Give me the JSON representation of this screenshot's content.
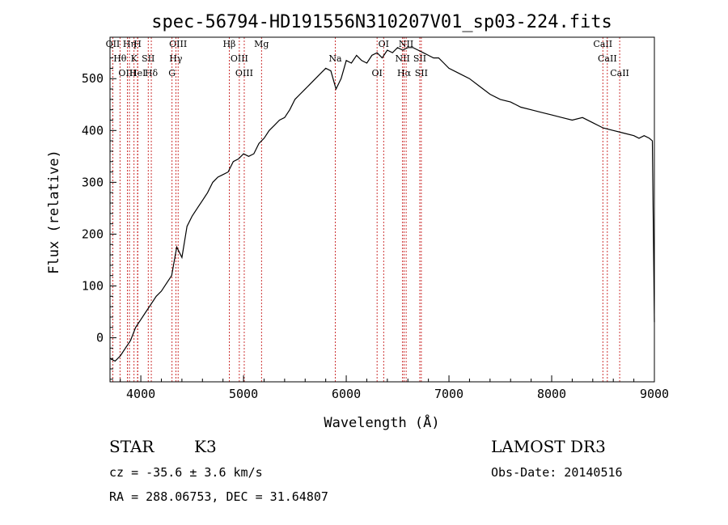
{
  "chart_data": {
    "type": "line",
    "title": "spec-56794-HD191556N310207V01_sp03-224.fits",
    "xlabel": "Wavelength (Å)",
    "ylabel": "Flux (relative)",
    "xlim": [
      3700,
      9000
    ],
    "ylim": [
      -85,
      580
    ],
    "xticks": [
      4000,
      5000,
      6000,
      7000,
      8000,
      9000
    ],
    "yticks": [
      0,
      100,
      200,
      300,
      400,
      500
    ],
    "series": [
      {
        "name": "spectrum",
        "x": [
          3700,
          3750,
          3800,
          3850,
          3900,
          3950,
          4000,
          4050,
          4100,
          4150,
          4200,
          4250,
          4300,
          4350,
          4400,
          4450,
          4500,
          4550,
          4600,
          4650,
          4700,
          4750,
          4800,
          4850,
          4900,
          4950,
          5000,
          5050,
          5100,
          5150,
          5200,
          5250,
          5300,
          5350,
          5400,
          5450,
          5500,
          5550,
          5600,
          5650,
          5700,
          5750,
          5800,
          5850,
          5900,
          5950,
          6000,
          6050,
          6100,
          6150,
          6200,
          6250,
          6300,
          6350,
          6400,
          6450,
          6500,
          6550,
          6600,
          6650,
          6700,
          6750,
          6800,
          6850,
          6900,
          6950,
          7000,
          7100,
          7200,
          7300,
          7400,
          7500,
          7600,
          7700,
          7800,
          7900,
          8000,
          8100,
          8200,
          8300,
          8400,
          8500,
          8600,
          8700,
          8800,
          8850,
          8900,
          8950,
          8980,
          9000
        ],
        "y": [
          -40,
          -45,
          -35,
          -20,
          -5,
          20,
          35,
          50,
          65,
          80,
          90,
          105,
          120,
          175,
          155,
          215,
          235,
          250,
          265,
          280,
          300,
          310,
          315,
          320,
          340,
          345,
          355,
          350,
          355,
          375,
          385,
          400,
          410,
          420,
          425,
          440,
          460,
          470,
          480,
          490,
          500,
          510,
          520,
          515,
          480,
          500,
          535,
          530,
          545,
          535,
          530,
          545,
          550,
          540,
          555,
          550,
          560,
          555,
          560,
          560,
          555,
          550,
          545,
          540,
          540,
          530,
          520,
          510,
          500,
          485,
          470,
          460,
          455,
          445,
          440,
          435,
          430,
          425,
          420,
          425,
          415,
          405,
          400,
          395,
          390,
          385,
          390,
          385,
          380,
          30
        ]
      }
    ],
    "lines": [
      {
        "name": "OII",
        "wave": 3727
      },
      {
        "name": "Hθ",
        "wave": 3797
      },
      {
        "name": "OIII",
        "wave": 3869
      },
      {
        "name": "Hη",
        "wave": 3889
      },
      {
        "name": "K",
        "wave": 3934
      },
      {
        "name": "HeI",
        "wave": 3970
      },
      {
        "name": "H",
        "wave": 3968
      },
      {
        "name": "SII",
        "wave": 4072
      },
      {
        "name": "Hδ",
        "wave": 4102
      },
      {
        "name": "OIII",
        "wave": 4363
      },
      {
        "name": "Hγ",
        "wave": 4341
      },
      {
        "name": "G",
        "wave": 4304
      },
      {
        "name": "Hβ",
        "wave": 4861
      },
      {
        "name": "OIII",
        "wave": 4959
      },
      {
        "name": "OIII",
        "wave": 5007
      },
      {
        "name": "Mg",
        "wave": 5175
      },
      {
        "name": "Na",
        "wave": 5893
      },
      {
        "name": "OI",
        "wave": 6300
      },
      {
        "name": "OI",
        "wave": 6364
      },
      {
        "name": "NII",
        "wave": 6548
      },
      {
        "name": "Hα",
        "wave": 6563
      },
      {
        "name": "NII",
        "wave": 6583
      },
      {
        "name": "SII",
        "wave": 6716
      },
      {
        "name": "SII",
        "wave": 6731
      },
      {
        "name": "CaII",
        "wave": 8498
      },
      {
        "name": "CaII",
        "wave": 8542
      },
      {
        "name": "CaII",
        "wave": 8662
      }
    ]
  },
  "info": {
    "class_label": "STAR",
    "subclass": "K3",
    "survey": "LAMOST DR3",
    "cz": "cz = -35.6 ± 3.6 km/s",
    "obs_date": "Obs-Date: 20140516",
    "coords": "RA = 288.06753, DEC =  31.64807"
  },
  "colors": {
    "spectrum": "#000000",
    "lines": "#c00000",
    "axis": "#000000"
  }
}
